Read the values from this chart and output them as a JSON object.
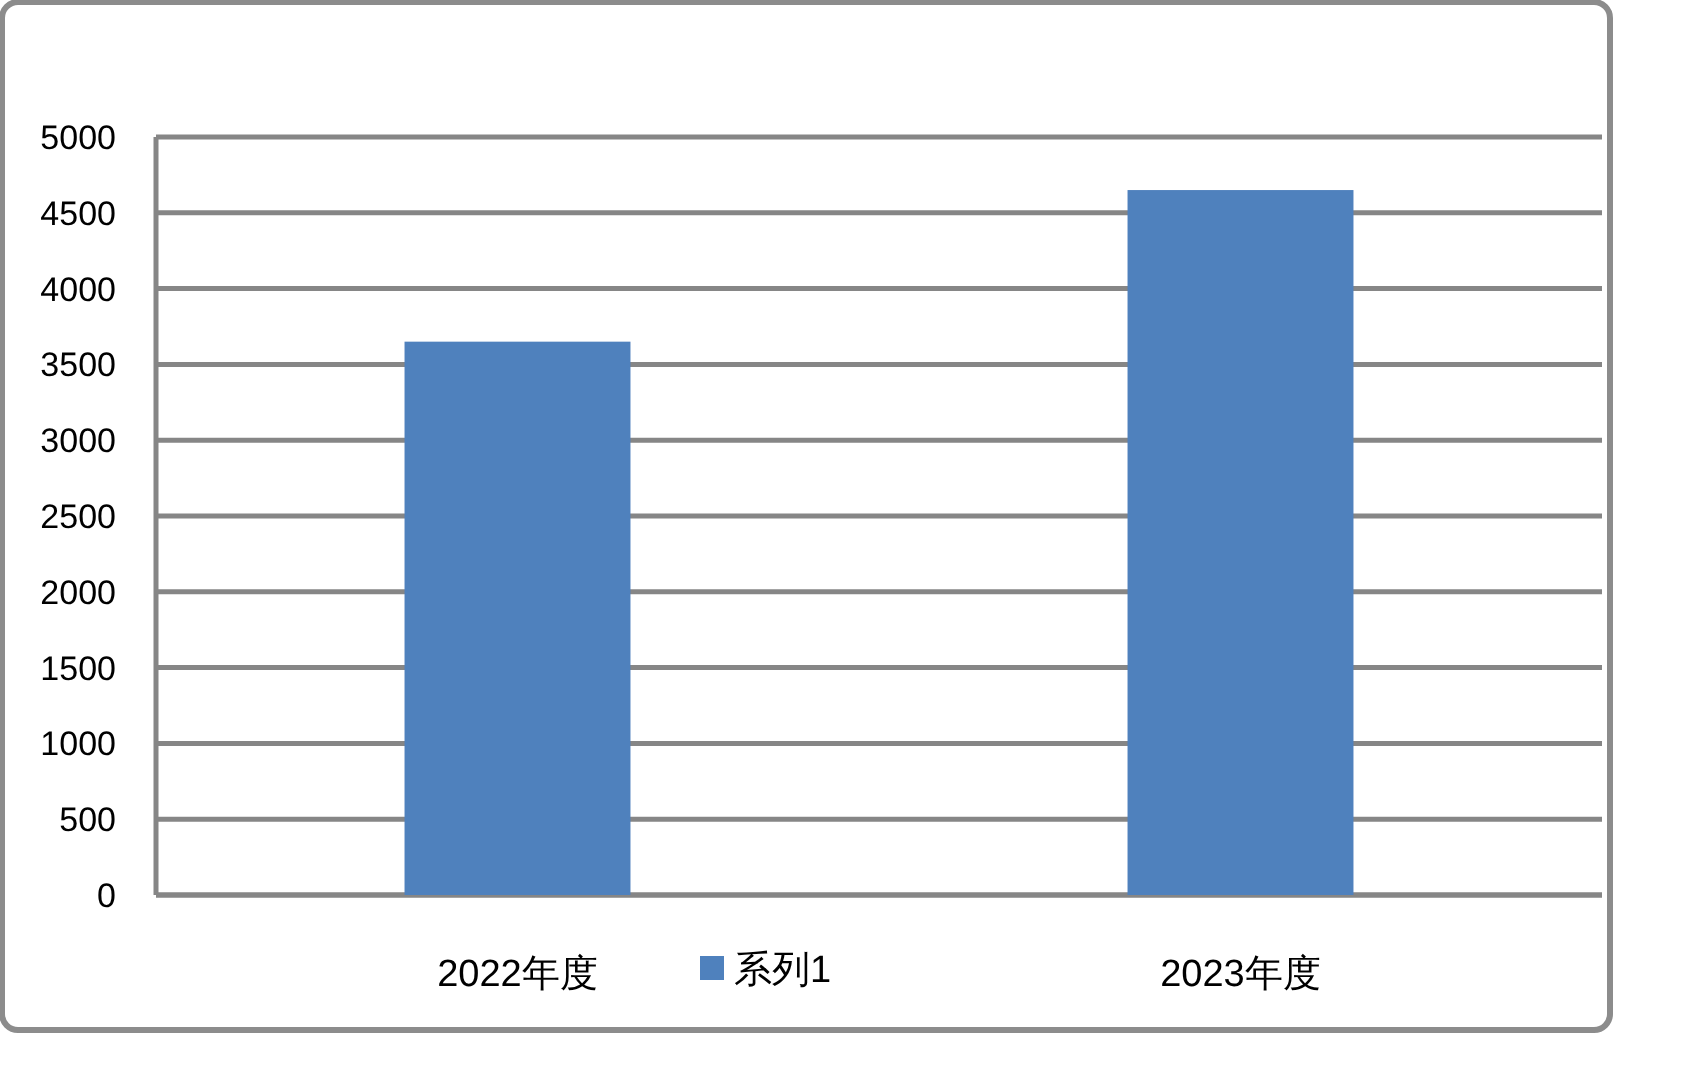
{
  "chart_data": {
    "type": "bar",
    "categories": [
      "2022年度",
      "2023年度"
    ],
    "series": [
      {
        "name": "系列1",
        "color": "#4f81bd",
        "values": [
          3650,
          4650
        ]
      }
    ],
    "ylim": [
      0,
      5000
    ],
    "yticks": [
      0,
      500,
      1000,
      1500,
      2000,
      2500,
      3000,
      3500,
      4000,
      4500,
      5000
    ],
    "grid": "y",
    "legend": "bottom"
  }
}
